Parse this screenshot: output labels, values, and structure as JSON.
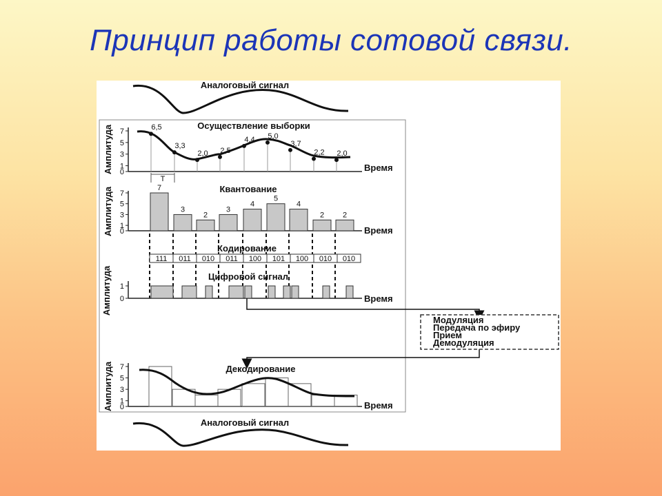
{
  "slide": {
    "title": "Принцип работы сотовой связи."
  },
  "diagram": {
    "analog_top_label": "Аналоговый сигнал",
    "analog_bottom_label": "Аналоговый сигнал",
    "y_axis_label": "Амплитуда",
    "x_axis_label": "Время",
    "period_label": "T",
    "y_ticks": [
      "0",
      "1",
      "3",
      "5",
      "7"
    ],
    "digital_y_ticks": [
      "0",
      "1"
    ],
    "sampling": {
      "title": "Осуществление выборки",
      "values": [
        "6,5",
        "3,3",
        "2,0",
        "2,5",
        "4,4",
        "5,0",
        "3,7",
        "2,2",
        "2,0"
      ]
    },
    "quantization": {
      "title": "Квантование",
      "values": [
        7,
        3,
        2,
        3,
        4,
        5,
        4,
        2,
        2
      ]
    },
    "coding": {
      "title": "Кодирование",
      "codes": [
        "111",
        "011",
        "010",
        "011",
        "100",
        "101",
        "100",
        "010",
        "010"
      ]
    },
    "digital": {
      "title": "Цифровой сигнал"
    },
    "transmission_box": {
      "lines": [
        "Модуляция",
        "Передача по эфиру",
        "Прием",
        "Демодуляция"
      ]
    },
    "decoding": {
      "title": "Декодирование",
      "values": [
        7,
        3,
        2,
        3,
        4,
        5,
        4,
        2,
        2
      ]
    }
  }
}
